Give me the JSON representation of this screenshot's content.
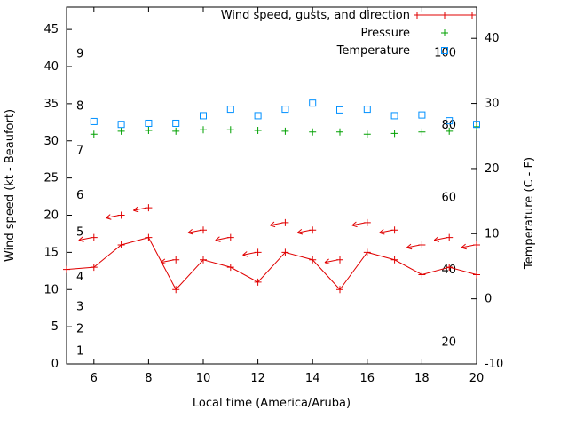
{
  "page": {
    "background": "#ffffff"
  },
  "chart_data": {
    "type": "line",
    "title": "",
    "xlabel": "Local time (America/Aruba)",
    "x_range": [
      5,
      20
    ],
    "x_ticks": [
      6,
      8,
      10,
      12,
      14,
      16,
      18,
      20
    ],
    "left_axis": {
      "label": "Wind speed (kt - Beaufort)",
      "range": [
        0,
        48
      ],
      "ticks": [
        0,
        5,
        10,
        15,
        20,
        25,
        30,
        35,
        40,
        45
      ]
    },
    "right_axis": {
      "label": "Temperature (C - F)",
      "range_c": [
        -10,
        44.8
      ],
      "ticks_c": [
        -10,
        0,
        10,
        20,
        30,
        40
      ]
    },
    "beaufort_labels": {
      "items": [
        {
          "label": "1",
          "kt": 1
        },
        {
          "label": "2",
          "kt": 4
        },
        {
          "label": "3",
          "kt": 7
        },
        {
          "label": "4",
          "kt": 11
        },
        {
          "label": "5",
          "kt": 17
        },
        {
          "label": "6",
          "kt": 22
        },
        {
          "label": "7",
          "kt": 28
        },
        {
          "label": "8",
          "kt": 34
        },
        {
          "label": "9",
          "kt": 41
        }
      ]
    },
    "fahrenheit_labels": {
      "values": [
        20,
        40,
        60,
        80,
        100
      ]
    },
    "legend": {
      "position": "top-right-inside",
      "entries": [
        {
          "label": "Wind speed, gusts, and direction",
          "marker": "line-plus",
          "series": "wind"
        },
        {
          "label": "Pressure",
          "marker": "plus",
          "series": "pressure"
        },
        {
          "label": "Temperature",
          "marker": "open-square",
          "series": "temperature"
        }
      ]
    },
    "colors": {
      "wind": "#e00000",
      "pressure": "#00a000",
      "temperature": "#0090ff",
      "axis": "#000000"
    },
    "x_hours": [
      5,
      6,
      7,
      8,
      9,
      10,
      11,
      12,
      13,
      14,
      15,
      16,
      17,
      18,
      19,
      20
    ],
    "gust_arrow_direction": "left",
    "series": {
      "wind_speed_kt": [
        12.7,
        13,
        16,
        17,
        10,
        14,
        13,
        11,
        15,
        14,
        10,
        15,
        14,
        12,
        13,
        12
      ],
      "wind_gust_kt": [
        null,
        17,
        20,
        21,
        14,
        18,
        17,
        15,
        19,
        18,
        14,
        19,
        18,
        16,
        17,
        16
      ],
      "pressure_level_left_axis": [
        null,
        30.9,
        31.3,
        31.4,
        31.3,
        31.5,
        31.5,
        31.4,
        31.3,
        31.2,
        31.2,
        30.9,
        31.0,
        31.2,
        31.3,
        31.9
      ],
      "temperature_f": [
        null,
        81.0,
        80.2,
        80.5,
        80.5,
        82.6,
        84.4,
        82.6,
        84.4,
        86.1,
        84.2,
        84.4,
        82.6,
        82.8,
        81.2,
        80.2
      ]
    }
  }
}
